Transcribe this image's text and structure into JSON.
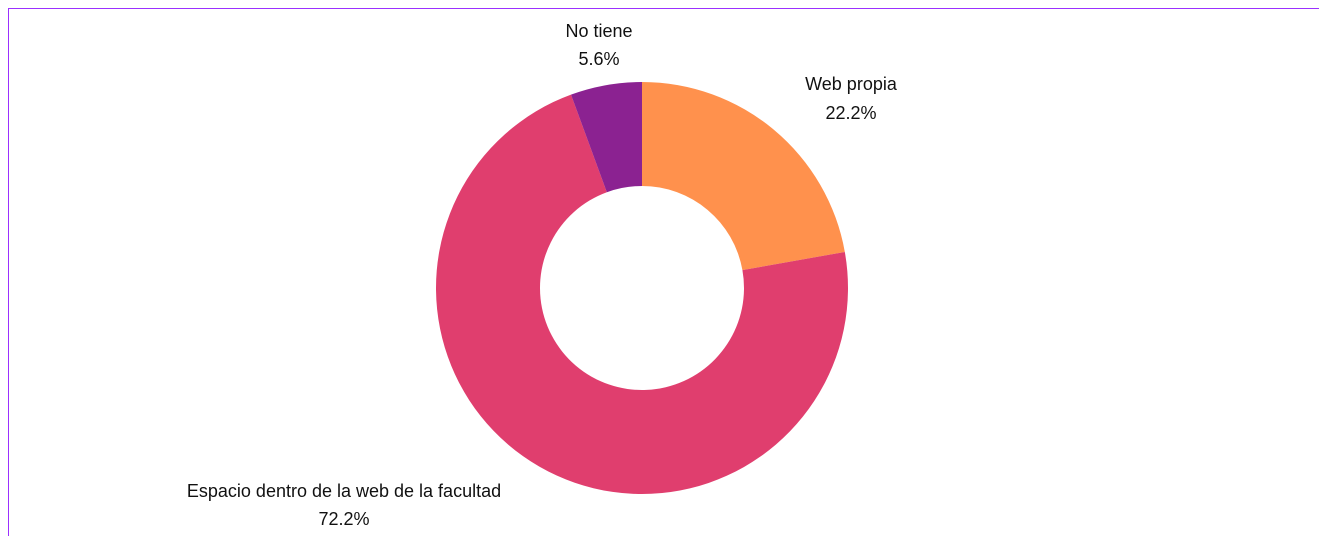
{
  "chart_data": {
    "type": "pie",
    "donut": true,
    "title": "",
    "slices": [
      {
        "label": "Web propia",
        "value": 22.2,
        "value_label": "22.2%",
        "color": "#ff914d"
      },
      {
        "label": "Espacio dentro de la web de la facultad",
        "value": 72.2,
        "value_label": "72.2%",
        "color": "#e03e6e"
      },
      {
        "label": "No tiene",
        "value": 5.6,
        "value_label": "5.6%",
        "color": "#8b2291"
      }
    ]
  },
  "colors": {
    "border": "#9b30ff"
  }
}
